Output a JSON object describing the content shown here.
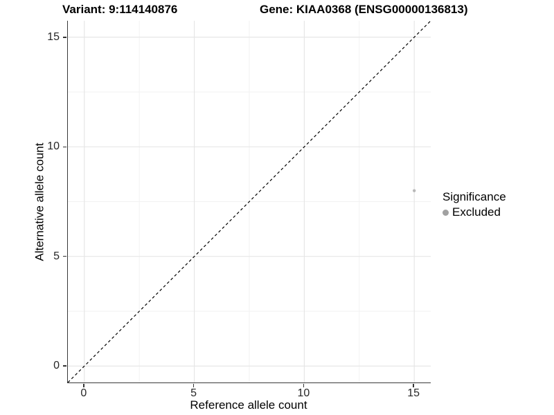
{
  "header": {
    "variant_title": "Variant: 9:114140876",
    "gene_title": "Gene: KIAA0368 (ENSG00000136813)"
  },
  "chart_data": {
    "type": "scatter",
    "titles": {
      "left": "Variant: 9:114140876",
      "right": "Gene: KIAA0368 (ENSG00000136813)"
    },
    "xlabel": "Reference allele count",
    "ylabel": "Alternative allele count",
    "xlim": [
      -0.75,
      15.75
    ],
    "ylim": [
      -0.75,
      15.75
    ],
    "x_ticks": [
      0,
      5,
      10,
      15
    ],
    "y_ticks": [
      0,
      5,
      10,
      15
    ],
    "x_minor_gridlines": [
      2.5,
      7.5,
      12.5
    ],
    "y_minor_gridlines": [
      2.5,
      7.5,
      12.5
    ],
    "grid": "major and minor gridlines, light gray on white",
    "reference_line": {
      "type": "identity",
      "equation": "y = x",
      "style": "dashed",
      "color": "#000000"
    },
    "series": [
      {
        "name": "Excluded",
        "color": "#b8b8b8",
        "points": [
          {
            "x": 15,
            "y": 8
          }
        ]
      }
    ],
    "legend": {
      "title": "Significance",
      "position": "right",
      "items": [
        {
          "label": "Excluded",
          "color": "#a1a1a1"
        }
      ]
    }
  },
  "colors": {
    "background": "#ffffff",
    "axis_line": "#383838",
    "tick_mark": "#333333",
    "tick_text": "#262626",
    "grid_major": "#e4e4e4",
    "grid_minor": "#f2f2f2",
    "title_text": "#000000",
    "point": "#b8b8b8",
    "legend_key": "#a1a1a1",
    "reference_line": "#000000"
  }
}
